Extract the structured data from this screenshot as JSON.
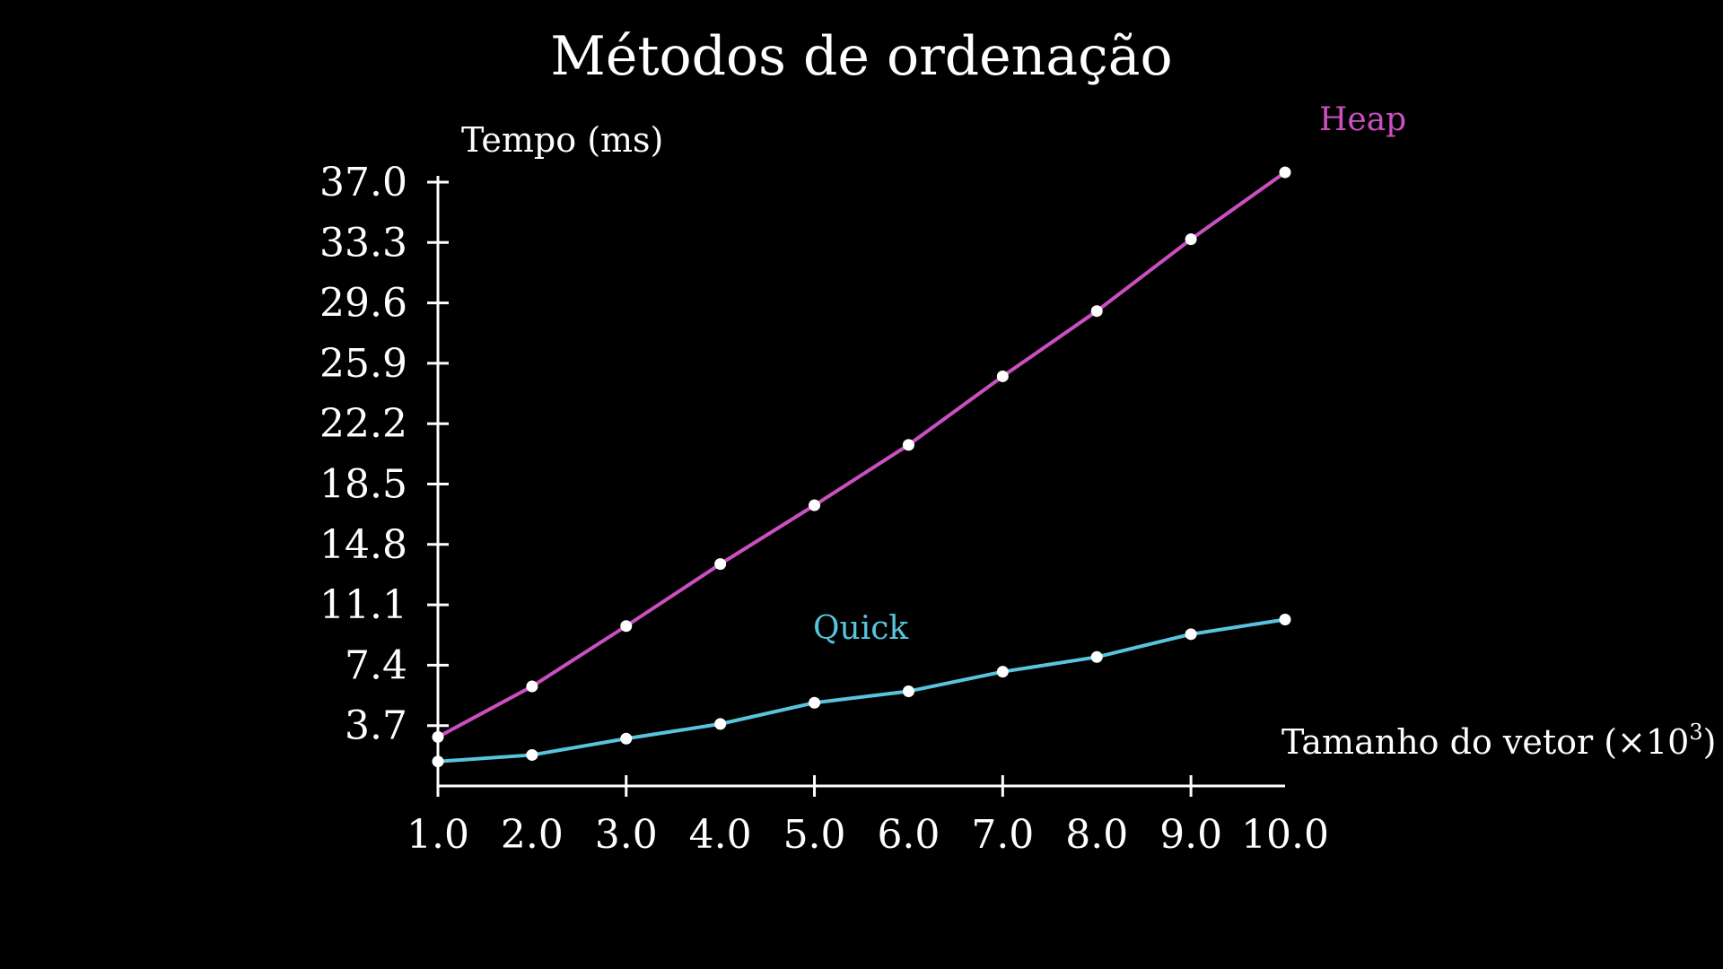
{
  "chart_data": {
    "type": "line",
    "title": "Métodos de ordenação",
    "xlabel": "Tamanho do vetor",
    "xlabel_unit_prefix": "(×10",
    "xlabel_unit_exp": "3",
    "xlabel_unit_suffix": ")",
    "ylabel": "Tempo (ms)",
    "x": [
      1.0,
      2.0,
      3.0,
      4.0,
      5.0,
      6.0,
      7.0,
      8.0,
      9.0,
      10.0
    ],
    "xticks": [
      "1.0",
      "2.0",
      "3.0",
      "4.0",
      "5.0",
      "6.0",
      "7.0",
      "8.0",
      "9.0",
      "10.0"
    ],
    "yticks": [
      "3.7",
      "7.4",
      "11.1",
      "14.8",
      "18.5",
      "22.2",
      "25.9",
      "29.6",
      "33.3",
      "37.0"
    ],
    "ytick_values": [
      3.7,
      7.4,
      11.1,
      14.8,
      18.5,
      22.2,
      25.9,
      29.6,
      33.3,
      37.0
    ],
    "xlim": [
      1.0,
      10.0
    ],
    "ylim": [
      0,
      37.0
    ],
    "grid": false,
    "background": "#000000",
    "series": [
      {
        "name": "Heap",
        "color": "#cc4fc1",
        "values": [
          3.0,
          6.1,
          9.8,
          13.6,
          17.2,
          20.9,
          25.1,
          29.1,
          33.5,
          37.6
        ]
      },
      {
        "name": "Quick",
        "color": "#58c4dd",
        "values": [
          1.5,
          1.9,
          2.9,
          3.8,
          5.1,
          5.8,
          7.0,
          7.9,
          9.3,
          10.2
        ]
      }
    ],
    "point_color": "#ffffff"
  }
}
